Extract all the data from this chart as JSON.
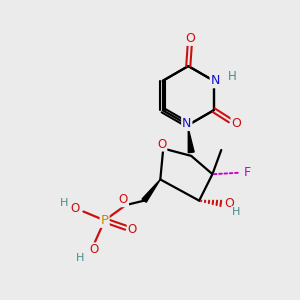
{
  "background_color": "#ebebeb",
  "atom_colors": {
    "C": "#000000",
    "N": "#1010cc",
    "O": "#cc1010",
    "F": "#cc00cc",
    "P": "#cc8800",
    "H": "#4a8a8a"
  },
  "bond_color": "#000000",
  "figsize": [
    3.0,
    3.0
  ],
  "dpi": 100,
  "xlim": [
    0,
    10
  ],
  "ylim": [
    0,
    10
  ]
}
